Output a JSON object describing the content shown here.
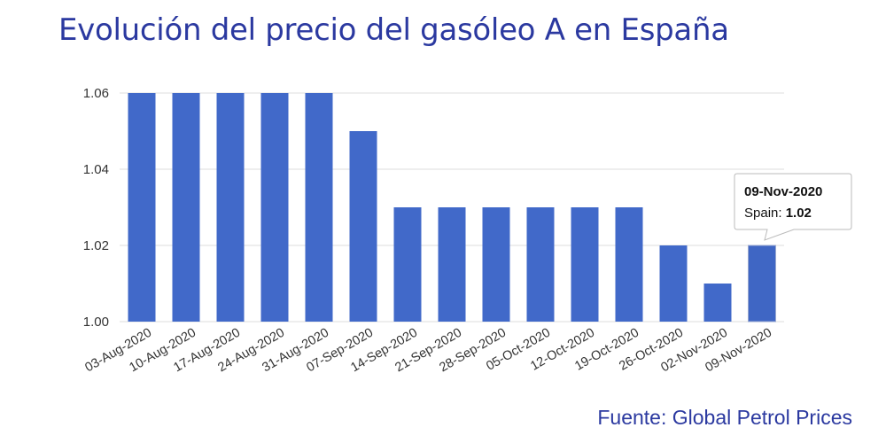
{
  "title": "Evolución del precio del gasóleo A en España",
  "source": "Fuente: Global Petrol Prices",
  "colors": {
    "bar": "#4169c9",
    "bar_highlight": "#3f66c4",
    "title": "#2b39a0",
    "grid": "#dddddd"
  },
  "tooltip": {
    "date": "09-Nov-2020",
    "series_label": "Spain: ",
    "value_text": "1.02",
    "category_index": 14
  },
  "chart_data": {
    "type": "bar",
    "title": "Evolución del precio del gasóleo A en España",
    "xlabel": "",
    "ylabel": "",
    "ylim": [
      1.0,
      1.06
    ],
    "yticks": [
      "1.00",
      "1.02",
      "1.04",
      "1.06"
    ],
    "grid": true,
    "categories": [
      "03-Aug-2020",
      "10-Aug-2020",
      "17-Aug-2020",
      "24-Aug-2020",
      "31-Aug-2020",
      "07-Sep-2020",
      "14-Sep-2020",
      "21-Sep-2020",
      "28-Sep-2020",
      "05-Oct-2020",
      "12-Oct-2020",
      "19-Oct-2020",
      "26-Oct-2020",
      "02-Nov-2020",
      "09-Nov-2020"
    ],
    "series": [
      {
        "values": [
          1.06,
          1.06,
          1.06,
          1.06,
          1.06,
          1.05,
          1.03,
          1.03,
          1.03,
          1.03,
          1.03,
          1.03,
          1.02,
          1.01,
          1.02
        ]
      }
    ]
  }
}
